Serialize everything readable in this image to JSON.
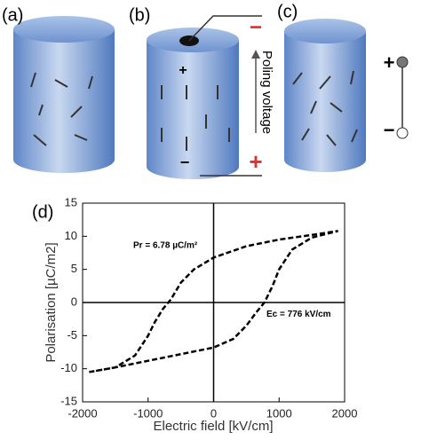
{
  "panels": [
    "(a)",
    "(b)",
    "(c)",
    "(d)"
  ],
  "diagram": {
    "poling_label": "Poling voltage",
    "plus": "+",
    "minus": "−"
  },
  "chart_data": {
    "type": "line",
    "xlabel": "Electric field [kV/cm]",
    "ylabel": "Polarisation [µC/m2]",
    "annotations": [
      "Pr = 6.78 µC/m²",
      "Ec = 776 kV/cm"
    ],
    "x": [
      -1900,
      -1500,
      -1000,
      -500,
      0,
      300,
      500,
      650,
      776,
      900,
      1000,
      1200,
      1500,
      1900,
      1500,
      1000,
      500,
      0,
      -300,
      -500,
      -650,
      -776,
      -900,
      -1000,
      -1200,
      -1500,
      -1900
    ],
    "values": [
      -10.5,
      -9.8,
      -8.8,
      -7.8,
      -6.8,
      -5.5,
      -3.5,
      -1.5,
      0,
      2.5,
      5,
      8,
      9.8,
      10.8,
      10.2,
      9.5,
      8.5,
      6.78,
      5,
      3,
      0.5,
      -1,
      -3,
      -5,
      -8,
      -9.8,
      -10.5
    ],
    "color": "#000000",
    "xlim": [
      -2000,
      2000
    ],
    "ylim": [
      -15,
      15
    ],
    "xticks": [
      -2000,
      -1000,
      0,
      1000,
      2000
    ],
    "yticks": [
      -15,
      -10,
      -5,
      0,
      5,
      10,
      15
    ]
  }
}
